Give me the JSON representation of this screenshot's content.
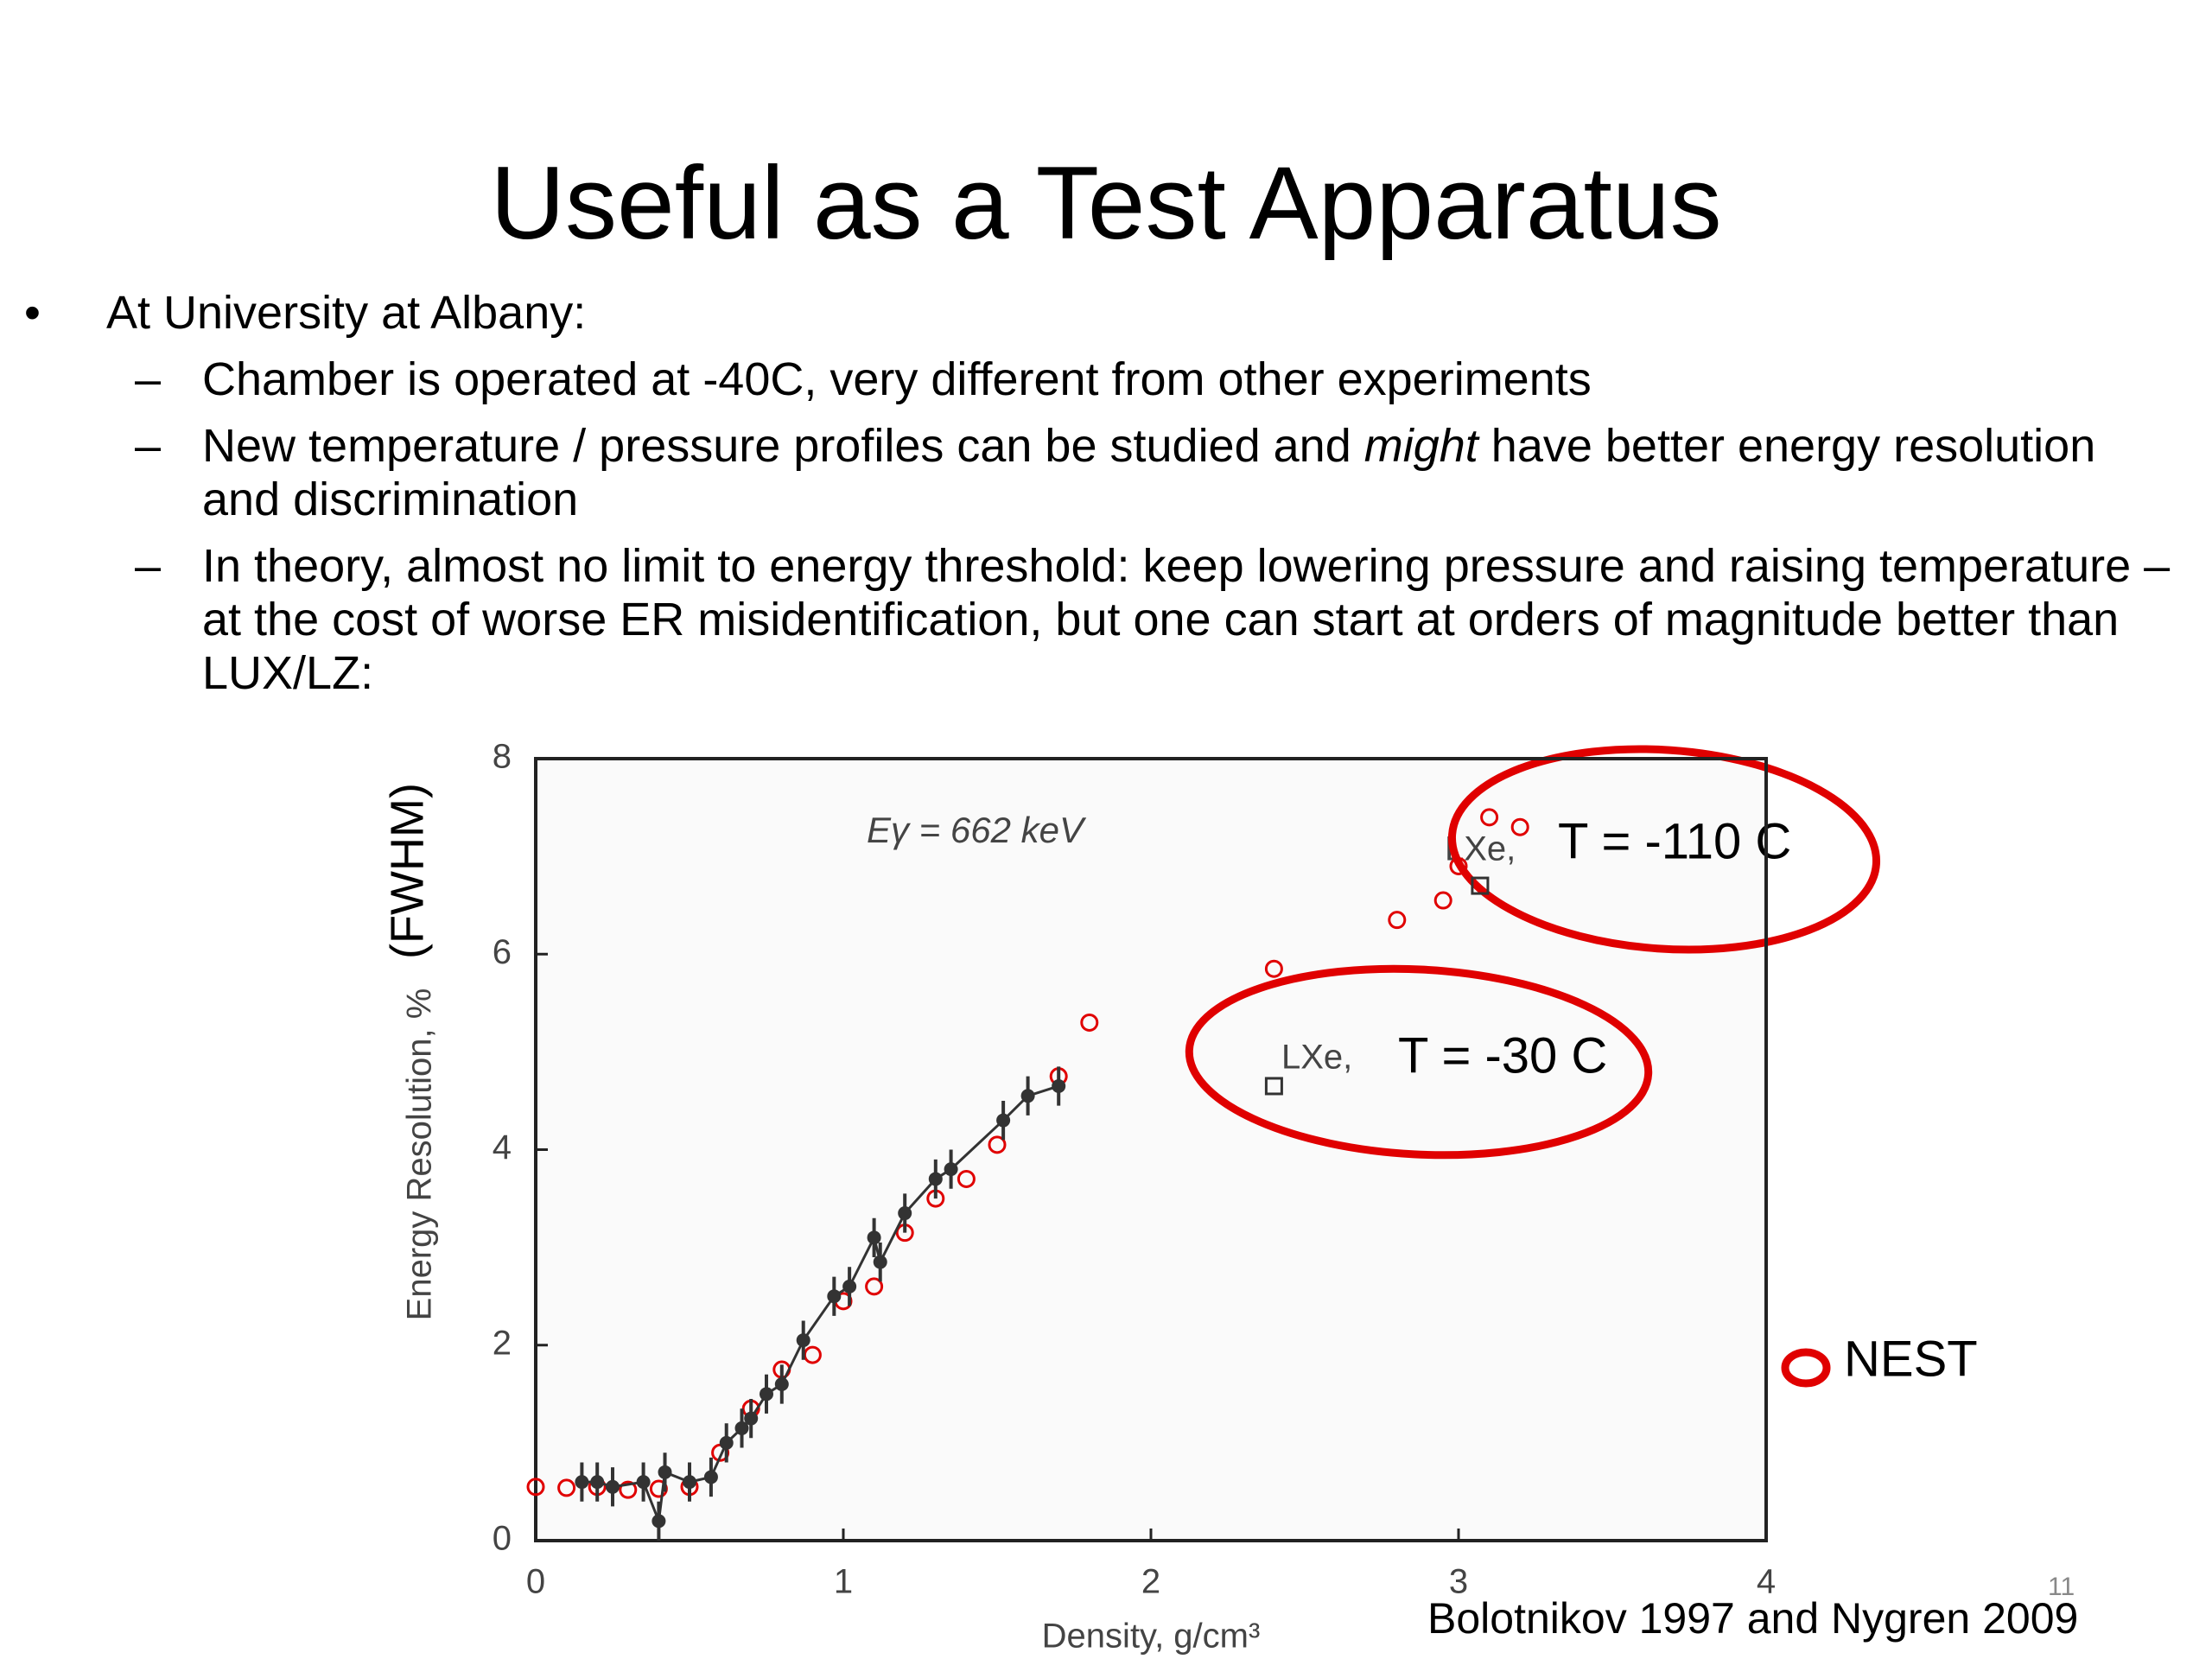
{
  "slide": {
    "title": "Useful as a Test Apparatus",
    "bullets": [
      {
        "text": "At University at Albany:",
        "sub": [
          [
            "Chamber is operated at -40C, very different from other experiments"
          ],
          [
            "New temperature / pressure profiles can be studied and ",
            "might",
            " have better energy resolution and discrimination"
          ],
          [
            "In theory, almost no limit to energy threshold: keep lowering pressure and raising temperature – at the cost of worse ER misidentification, but one can start at orders of magnitude better than LUX/LZ:"
          ]
        ]
      }
    ],
    "page_number": "11"
  },
  "chart_data": {
    "type": "scatter",
    "xlabel": "Density, g/cm³",
    "ylabel": "Energy Resolution, %",
    "ylabel_note": "(FWHM)",
    "source": "Bolotnikov 1997 and Nygren 2009",
    "annotations": [
      "Eγ = 662 keV",
      "LXe,",
      "LXe,",
      "T = -110 C",
      "T = -30 C"
    ],
    "xlim": [
      0,
      4
    ],
    "ylim": [
      0,
      8
    ],
    "xticks": [
      0,
      1,
      2,
      3,
      4
    ],
    "yticks": [
      0,
      2,
      4,
      6,
      8
    ],
    "grid": true,
    "series": [
      {
        "name": "NEST",
        "color": "#e00000",
        "marker": "circle",
        "x": [
          0,
          0.1,
          0.2,
          0.3,
          0.4,
          0.5,
          0.6,
          0.7,
          0.8,
          0.9,
          1.0,
          1.1,
          1.2,
          1.3,
          1.4,
          1.5,
          1.7,
          1.8,
          2.4,
          2.8,
          2.95,
          3.0,
          3.1,
          3.2
        ],
        "values": [
          0.55,
          0.54,
          0.55,
          0.52,
          0.53,
          0.55,
          0.9,
          1.35,
          1.75,
          1.9,
          2.45,
          2.6,
          3.15,
          3.5,
          3.7,
          4.05,
          4.75,
          5.3,
          5.85,
          6.35,
          6.55,
          6.9,
          7.4,
          7.3
        ]
      },
      {
        "color": "#333333",
        "marker": "dot",
        "line": true,
        "x": [
          0.15,
          0.2,
          0.25,
          0.35,
          0.4,
          0.42,
          0.5,
          0.57,
          0.62,
          0.67,
          0.7,
          0.75,
          0.8,
          0.87,
          0.97,
          1.02,
          1.1,
          1.12,
          1.2,
          1.3,
          1.35,
          1.52,
          1.6,
          1.7
        ],
        "values": [
          0.6,
          0.6,
          0.55,
          0.6,
          0.2,
          0.7,
          0.6,
          0.65,
          1.0,
          1.15,
          1.25,
          1.5,
          1.6,
          2.05,
          2.5,
          2.6,
          3.1,
          2.85,
          3.35,
          3.7,
          3.8,
          4.3,
          4.55,
          4.65
        ],
        "errors": [
          0.2,
          0.2,
          0.2,
          0.2,
          0.2,
          0.2,
          0.2,
          0.2,
          0.2,
          0.2,
          0.2,
          0.2,
          0.2,
          0.2,
          0.2,
          0.2,
          0.2,
          0.2,
          0.2,
          0.2,
          0.2,
          0.2,
          0.2,
          0.2
        ]
      },
      {
        "color": "#333333",
        "marker": "square",
        "x": [
          2.4,
          3.07
        ],
        "values": [
          4.65,
          6.7
        ]
      }
    ]
  }
}
